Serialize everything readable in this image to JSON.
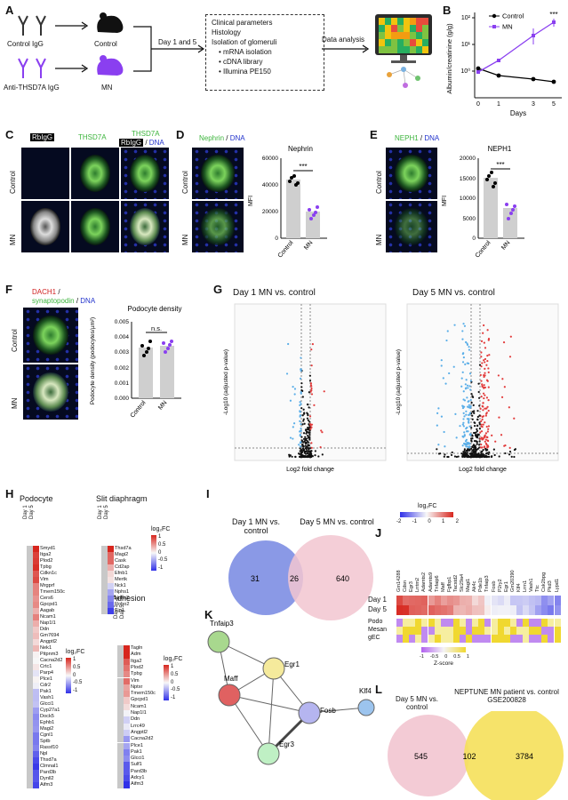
{
  "panels": [
    "A",
    "B",
    "C",
    "D",
    "E",
    "F",
    "G",
    "H",
    "I",
    "J",
    "K",
    "L"
  ],
  "panelA": {
    "control_label": "Control IgG",
    "control_mouse": "Control",
    "mn_label": "Anti-THSD7A IgG",
    "mn_mouse": "MN",
    "step": "Day 1 and 5",
    "steps": [
      "Clinical parameters",
      "Histology",
      "Isolation of glomeruli",
      "mRNA isolation",
      "cDNA library",
      "Illumina PE150"
    ],
    "analysis": "Data analysis"
  },
  "panelB": {
    "ylabel": "Albumin/creatinine (g/g)",
    "xlabel": "Days",
    "significance": "***",
    "legend": [
      "Control",
      "MN"
    ],
    "xticks": [
      "0",
      "1",
      "3",
      "5"
    ],
    "yticks": [
      "10⁰",
      "10¹",
      "10²"
    ],
    "colors": {
      "control": "#000000",
      "mn": "#8a3ff0"
    }
  },
  "panelC": {
    "headers": [
      "RbIgG",
      "THSD7A",
      "THSD7A",
      "RbIgG",
      "DNA"
    ],
    "rows": [
      "Control",
      "MN"
    ]
  },
  "panelD": {
    "headers": [
      "Nephrin",
      "DNA"
    ],
    "rows": [
      "Control",
      "MN"
    ],
    "title": "Nephrin",
    "ylabel": "MFI",
    "yticks": [
      "0",
      "20000",
      "40000",
      "60000"
    ],
    "categories": [
      "Control",
      "MN"
    ],
    "significance": "***"
  },
  "panelE": {
    "headers": [
      "NEPH1",
      "DNA"
    ],
    "rows": [
      "Control",
      "MN"
    ],
    "title": "NEPH1",
    "ylabel": "MFI",
    "yticks": [
      "0",
      "5000",
      "10000",
      "15000",
      "20000"
    ],
    "categories": [
      "Control",
      "MN"
    ],
    "significance": "***"
  },
  "panelF": {
    "headers": [
      "DACH1",
      "synaptopodin",
      "DNA"
    ],
    "rows": [
      "Control",
      "MN"
    ],
    "title": "Podocyte density",
    "ylabel": "Podocyte density (podocytes/µm²)",
    "yticks": [
      "0.000",
      "0.001",
      "0.002",
      "0.003",
      "0.004",
      "0.005"
    ],
    "categories": [
      "Control",
      "MN"
    ],
    "significance": "n.s."
  },
  "panelG": {
    "titles": [
      "Day 1 MN vs. control",
      "Day 5 MN vs. control"
    ],
    "xlabel": "Log2 fold change",
    "ylabel": "-Log10 (adjusted p-value)"
  },
  "panelH": {
    "podocyte_title": "Podocyte",
    "slit_title": "Slit diaphragm",
    "adhesion_title": "Adhesion",
    "days": [
      "Day 1",
      "Day 5"
    ],
    "legend_title": "log₂FC",
    "legend_ticks_a": [
      "1",
      "0.5",
      "0",
      "-0.5",
      "-1"
    ],
    "legend_ticks_b": [
      "1",
      "0.5",
      "0",
      "-0.5",
      "-1"
    ],
    "legend_ticks_c": [
      "1",
      "0.5",
      "0",
      "-0.5",
      "-1"
    ],
    "podocyte_genes": [
      "Smyd1",
      "Itga2",
      "Plod2",
      "Tpbg",
      "Cdkn1c",
      "Vim",
      "Mrgprf",
      "Tmem150c",
      "Cers6",
      "Gpcpd1",
      "Aagab",
      "Ncam1",
      "Nap1l1",
      "Ddn",
      "Gm7694",
      "Angptl2",
      "Nek1",
      "Pitpnm3",
      "Cacna2d2",
      "Crtc1",
      "Parp4",
      "Plce1",
      "Cdr2",
      "Pak1",
      "Vash1",
      "Glcci1",
      "Cyp27a1",
      "Dock5",
      "Ephb1",
      "Magi2",
      "Cgnl1",
      "Sptb",
      "Rassf10",
      "Npl",
      "Thsd7a",
      "Clmnal1",
      "Pard3b",
      "Dynll2",
      "Aifm3"
    ],
    "slit_genes": [
      "Thsd7a",
      "Magi2",
      "Cask",
      "Cd2ap",
      "Efnb1",
      "Mertk",
      "Nck1",
      "Nphs1",
      "Nphs2",
      "Robo2",
      "Tjp1"
    ],
    "adhesion_genes": [
      "Tagln",
      "Adm",
      "Itga2",
      "Plod2",
      "Tpbg",
      "Vim",
      "Nptxr",
      "Tmem150c",
      "Gpcpd1",
      "Ncam1",
      "Nap1l1",
      "Ddn",
      "Lrrc49",
      "Angptl2",
      "Cacna2d2",
      "Plce1",
      "Pak1",
      "Glcci1",
      "Sulf1",
      "Pard3b",
      "Adcy1",
      "Aifm3"
    ]
  },
  "panelI": {
    "left": "Day 1 MN vs. control",
    "right": "Day 5 MN vs. control",
    "left_only": "31",
    "overlap": "26",
    "right_only": "640"
  },
  "panelJ": {
    "legend_title": "log₂FC",
    "legend_ticks": [
      "-2",
      "-1",
      "0",
      "1",
      "2"
    ],
    "rows": [
      "Day 1",
      "Day 5"
    ],
    "rows2": [
      "Podo",
      "Mesan",
      "gEC"
    ],
    "zscore_title": "Z-score",
    "zscore_ticks": [
      "-1",
      "-0.5",
      "0",
      "0.5",
      "1"
    ],
    "genes": [
      "Gm14288",
      "Cdsn",
      "Egr3",
      "Lrrtm2",
      "Adamts2",
      "Adamts9",
      "Tnfaip6",
      "Maff",
      "Fgfbp1",
      "Tacstd2",
      "Slc29a4",
      "Magi1",
      "Ak4c",
      "Pde1b",
      "Tnfaip3",
      "Fosb",
      "P2ry2",
      "Egr1",
      "Gm20390",
      "Klf4",
      "Lrrn1",
      "Vash1",
      "Ttc",
      "Csk2bpg",
      "Pkd3",
      "Lypd1"
    ]
  },
  "panelK": {
    "nodes": [
      "Tnfaip3",
      "Egr1",
      "Maff",
      "Fosb",
      "Klf4",
      "Egr3"
    ]
  },
  "panelL": {
    "left": "Day 5 MN vs. control",
    "right": "NEPTUNE MN patient vs. control GSE200828",
    "left_only": "545",
    "overlap": "102",
    "right_only": "3784"
  }
}
